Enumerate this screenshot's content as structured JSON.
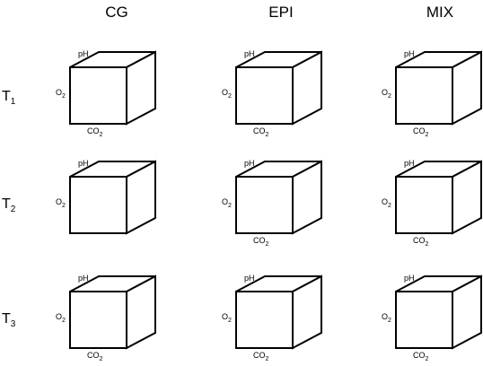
{
  "columns": [
    {
      "label": "CG"
    },
    {
      "label": "EPI"
    },
    {
      "label": "MIX"
    }
  ],
  "rows": [
    {
      "letter": "T",
      "sub": "1"
    },
    {
      "letter": "T",
      "sub": "2"
    },
    {
      "letter": "T",
      "sub": "3"
    }
  ],
  "axes": {
    "top": "pH",
    "left_main": "O",
    "left_sub": "2",
    "bottom_main": "CO",
    "bottom_sub": "2"
  },
  "cubes": [
    {
      "row": 1,
      "column": "CG",
      "show_co2": true
    },
    {
      "row": 1,
      "column": "EPI",
      "show_co2": true
    },
    {
      "row": 1,
      "column": "MIX",
      "show_co2": true
    },
    {
      "row": 2,
      "column": "CG",
      "show_co2": false
    },
    {
      "row": 2,
      "column": "EPI",
      "show_co2": true
    },
    {
      "row": 2,
      "column": "MIX",
      "show_co2": true
    },
    {
      "row": 3,
      "column": "CG",
      "show_co2": true
    },
    {
      "row": 3,
      "column": "EPI",
      "show_co2": true
    },
    {
      "row": 3,
      "column": "MIX",
      "show_co2": true
    }
  ]
}
